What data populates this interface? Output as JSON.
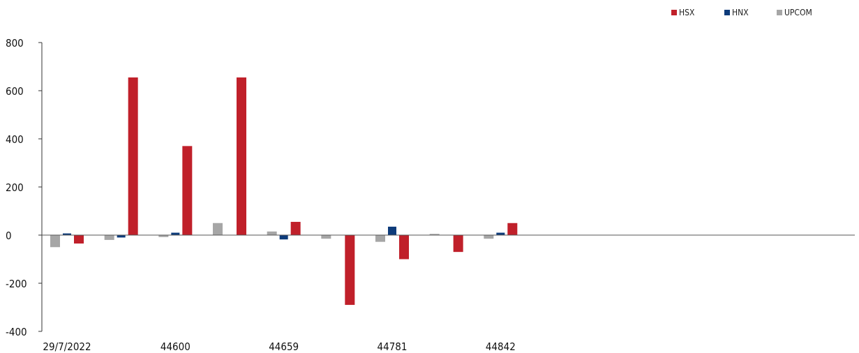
{
  "chart_data": {
    "type": "bar",
    "title": "",
    "xlabel": "",
    "ylabel": "",
    "ylim": [
      -400,
      800
    ],
    "yticks": [
      800,
      600,
      400,
      200,
      0,
      -200,
      -400
    ],
    "legend_position": "top-right",
    "categories": [
      "29/7/2022",
      "",
      "44600",
      "",
      "44659",
      "",
      "44781",
      "",
      "44842",
      "",
      "",
      "",
      "",
      "",
      ""
    ],
    "series": [
      {
        "name": "UPCOM",
        "color": "#a6a6a6",
        "values": [
          -50,
          -20,
          -8,
          50,
          15,
          -15,
          -28,
          5,
          -15,
          0,
          0,
          0,
          0,
          0,
          0
        ]
      },
      {
        "name": "HNX",
        "color": "#0d3b7a",
        "values": [
          7,
          -10,
          10,
          0,
          -18,
          0,
          35,
          0,
          10,
          0,
          0,
          0,
          0,
          0,
          0
        ]
      },
      {
        "name": "HSX",
        "color": "#c0202a",
        "values": [
          -35,
          655,
          370,
          655,
          55,
          -290,
          -100,
          -70,
          50,
          0,
          0,
          0,
          0,
          0,
          0
        ]
      }
    ],
    "legend_order": [
      "HSX",
      "HNX",
      "UPCOM"
    ]
  }
}
